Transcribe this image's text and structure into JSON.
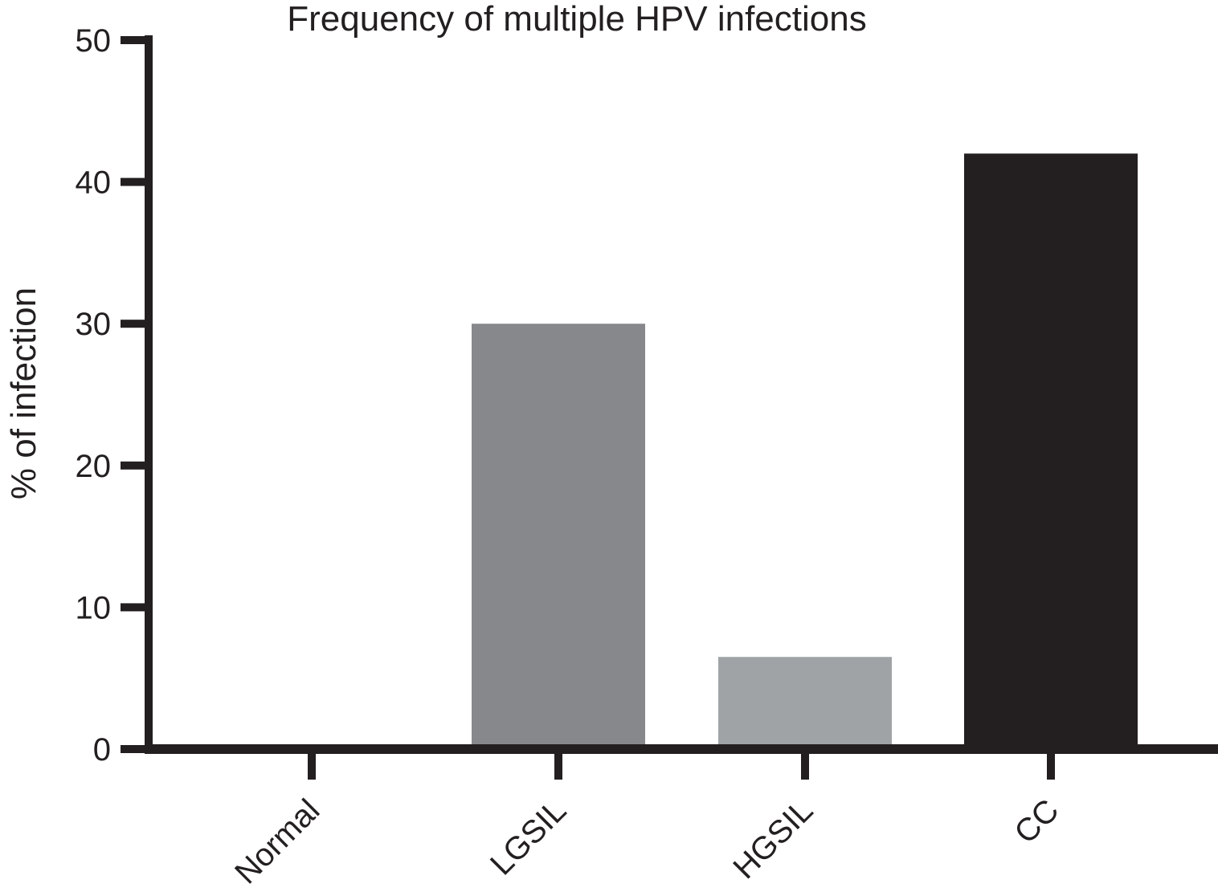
{
  "chart_data": {
    "type": "bar",
    "title": "Frequency of multiple HPV infections",
    "xlabel": "",
    "ylabel": "% of infection",
    "categories": [
      "Normal",
      "LGSIL",
      "HGSIL",
      "CC"
    ],
    "values": [
      0,
      30,
      6.5,
      42
    ],
    "colors": [
      "#ffffff",
      "#87888c",
      "#a0a3a6",
      "#231f20"
    ],
    "ylim": [
      0,
      50
    ],
    "yticks": [
      "0",
      "10",
      "20",
      "30",
      "40",
      "50"
    ],
    "grid": false,
    "legend": "none",
    "axis_color": "#231f20"
  }
}
